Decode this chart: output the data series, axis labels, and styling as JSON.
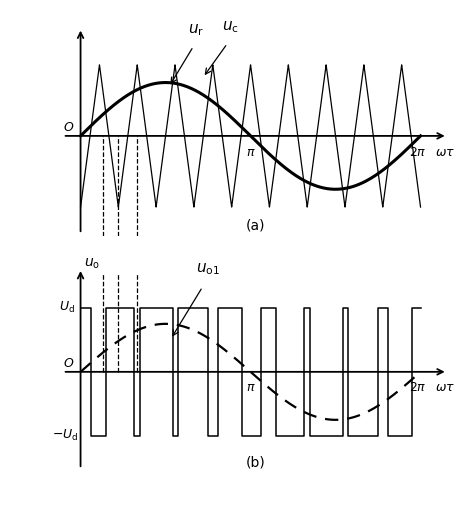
{
  "title_a": "(a)",
  "title_b": "(b)",
  "carrier_freq_ratio": 9,
  "modulation_index": 0.75,
  "Ud": 1.0,
  "pi_val": 3.14159265358979,
  "label_ur": "$u_{\\rm r}$",
  "label_uc": "$u_{\\rm c}$",
  "label_uo": "$u_{\\rm o}$",
  "label_uo1": "$u_{\\rm o1}$",
  "label_omega_tau": "$\\omega\\tau$",
  "label_O": "$O$",
  "label_pi": "$\\pi$",
  "label_2pi": "$2\\pi$",
  "label_Ud": "$U_{\\rm d}$",
  "label_neg_Ud": "$-U_{\\rm d}$",
  "fig_width": 4.74,
  "fig_height": 5.12,
  "dpi": 100
}
